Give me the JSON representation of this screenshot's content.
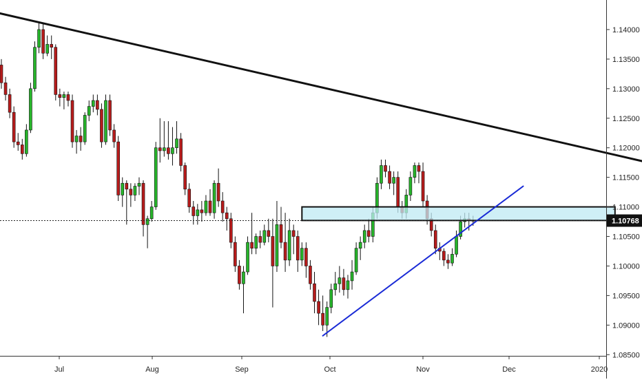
{
  "chart_data": {
    "type": "candlestick",
    "title": "",
    "xlabel": "",
    "ylabel": "",
    "ylim": [
      1.0848,
      1.145
    ],
    "y_ticks": [
      "1.14000",
      "1.13500",
      "1.13000",
      "1.12500",
      "1.12000",
      "1.11500",
      "1.11000",
      "1.10500",
      "1.10000",
      "1.09500",
      "1.09000",
      "1.08500"
    ],
    "x_ticks": [
      "Jul",
      "Aug",
      "Sep",
      "Oct",
      "Nov",
      "Dec",
      "2020"
    ],
    "current_price": "1.10768",
    "colors": {
      "up": "#27b52b",
      "down": "#b71c1c",
      "trendline": "#111111",
      "support_line": "#1a2bd6",
      "zone_fill": "#bfe9f3",
      "price_label_bg": "#111111",
      "price_label_text": "#ffffff"
    },
    "candles": [
      [
        1.134,
        1.135,
        1.13,
        1.131
      ],
      [
        1.131,
        1.132,
        1.128,
        1.129
      ],
      [
        1.129,
        1.13,
        1.125,
        1.126
      ],
      [
        1.126,
        1.127,
        1.12,
        1.121
      ],
      [
        1.121,
        1.1225,
        1.1195,
        1.1205
      ],
      [
        1.1205,
        1.1215,
        1.118,
        1.119
      ],
      [
        1.119,
        1.124,
        1.1185,
        1.123
      ],
      [
        1.123,
        1.131,
        1.1225,
        1.13
      ],
      [
        1.13,
        1.138,
        1.1295,
        1.137
      ],
      [
        1.137,
        1.1412,
        1.136,
        1.14
      ],
      [
        1.14,
        1.141,
        1.135,
        1.136
      ],
      [
        1.136,
        1.139,
        1.1355,
        1.1375
      ],
      [
        1.1375,
        1.139,
        1.135,
        1.137
      ],
      [
        1.137,
        1.1375,
        1.128,
        1.129
      ],
      [
        1.129,
        1.13,
        1.127,
        1.1285
      ],
      [
        1.1285,
        1.1295,
        1.1265,
        1.129
      ],
      [
        1.129,
        1.1295,
        1.127,
        1.128
      ],
      [
        1.128,
        1.129,
        1.12,
        1.121
      ],
      [
        1.121,
        1.123,
        1.119,
        1.122
      ],
      [
        1.122,
        1.1235,
        1.1195,
        1.121
      ],
      [
        1.121,
        1.126,
        1.1205,
        1.1255
      ],
      [
        1.1255,
        1.128,
        1.1245,
        1.127
      ],
      [
        1.127,
        1.129,
        1.126,
        1.128
      ],
      [
        1.128,
        1.129,
        1.1255,
        1.1265
      ],
      [
        1.1265,
        1.1275,
        1.12,
        1.121
      ],
      [
        1.121,
        1.129,
        1.1205,
        1.128
      ],
      [
        1.128,
        1.129,
        1.122,
        1.123
      ],
      [
        1.123,
        1.124,
        1.12,
        1.121
      ],
      [
        1.121,
        1.122,
        1.111,
        1.112
      ],
      [
        1.112,
        1.115,
        1.11,
        1.114
      ],
      [
        1.114,
        1.1145,
        1.107,
        1.113
      ],
      [
        1.113,
        1.114,
        1.11,
        1.112
      ],
      [
        1.112,
        1.114,
        1.111,
        1.1135
      ],
      [
        1.1135,
        1.115,
        1.112,
        1.114
      ],
      [
        1.114,
        1.1145,
        1.105,
        1.107
      ],
      [
        1.107,
        1.1085,
        1.103,
        1.108
      ],
      [
        1.108,
        1.111,
        1.1075,
        1.11
      ],
      [
        1.11,
        1.121,
        1.1095,
        1.12
      ],
      [
        1.12,
        1.125,
        1.1175,
        1.1195
      ],
      [
        1.1195,
        1.1245,
        1.1185,
        1.12
      ],
      [
        1.12,
        1.1245,
        1.118,
        1.119
      ],
      [
        1.119,
        1.1235,
        1.117,
        1.12
      ],
      [
        1.12,
        1.1245,
        1.119,
        1.1215
      ],
      [
        1.1215,
        1.1225,
        1.116,
        1.117
      ],
      [
        1.117,
        1.1175,
        1.112,
        1.113
      ],
      [
        1.113,
        1.114,
        1.109,
        1.11
      ],
      [
        1.11,
        1.111,
        1.107,
        1.1085
      ],
      [
        1.1085,
        1.1105,
        1.107,
        1.1095
      ],
      [
        1.1095,
        1.111,
        1.1075,
        1.109
      ],
      [
        1.109,
        1.112,
        1.1085,
        1.111
      ],
      [
        1.111,
        1.113,
        1.1085,
        1.109
      ],
      [
        1.109,
        1.1145,
        1.108,
        1.114
      ],
      [
        1.114,
        1.1165,
        1.11,
        1.111
      ],
      [
        1.111,
        1.1125,
        1.1075,
        1.109
      ],
      [
        1.109,
        1.11,
        1.106,
        1.108
      ],
      [
        1.108,
        1.109,
        1.103,
        1.104
      ],
      [
        1.104,
        1.105,
        1.099,
        1.1
      ],
      [
        1.1,
        1.101,
        1.096,
        1.097
      ],
      [
        1.097,
        1.1,
        1.092,
        1.099
      ],
      [
        1.099,
        1.105,
        1.0985,
        1.104
      ],
      [
        1.104,
        1.109,
        1.102,
        1.103
      ],
      [
        1.103,
        1.1055,
        1.102,
        1.105
      ],
      [
        1.105,
        1.106,
        1.103,
        1.104
      ],
      [
        1.104,
        1.107,
        1.1035,
        1.106
      ],
      [
        1.106,
        1.108,
        1.104,
        1.105
      ],
      [
        1.105,
        1.108,
        1.093,
        1.1
      ],
      [
        1.1,
        1.111,
        1.099,
        1.107
      ],
      [
        1.107,
        1.11,
        1.103,
        1.104
      ],
      [
        1.104,
        1.109,
        1.099,
        1.101
      ],
      [
        1.101,
        1.108,
        1.1,
        1.106
      ],
      [
        1.106,
        1.107,
        1.102,
        1.105
      ],
      [
        1.105,
        1.106,
        1.099,
        1.101
      ],
      [
        1.101,
        1.104,
        1.1,
        1.103
      ],
      [
        1.103,
        1.104,
        1.098,
        1.1
      ],
      [
        1.1,
        1.101,
        1.096,
        1.097
      ],
      [
        1.097,
        1.099,
        1.092,
        1.094
      ],
      [
        1.094,
        1.096,
        1.09,
        1.092
      ],
      [
        1.092,
        1.095,
        1.089,
        1.09
      ],
      [
        1.09,
        1.094,
        1.088,
        1.093
      ],
      [
        1.093,
        1.097,
        1.092,
        1.096
      ],
      [
        1.096,
        1.099,
        1.095,
        1.097
      ],
      [
        1.097,
        1.1,
        1.0955,
        1.098
      ],
      [
        1.098,
        1.0995,
        1.095,
        1.096
      ],
      [
        1.096,
        1.0985,
        1.0945,
        1.0975
      ],
      [
        1.0975,
        1.101,
        1.096,
        1.099
      ],
      [
        1.099,
        1.104,
        1.0985,
        1.103
      ],
      [
        1.103,
        1.105,
        1.101,
        1.104
      ],
      [
        1.104,
        1.107,
        1.103,
        1.106
      ],
      [
        1.106,
        1.108,
        1.104,
        1.105
      ],
      [
        1.105,
        1.11,
        1.104,
        1.109
      ],
      [
        1.109,
        1.115,
        1.108,
        1.114
      ],
      [
        1.114,
        1.118,
        1.113,
        1.117
      ],
      [
        1.117,
        1.118,
        1.115,
        1.116
      ],
      [
        1.116,
        1.117,
        1.113,
        1.114
      ],
      [
        1.114,
        1.116,
        1.112,
        1.115
      ],
      [
        1.115,
        1.116,
        1.109,
        1.11
      ],
      [
        1.11,
        1.111,
        1.108,
        1.109
      ],
      [
        1.109,
        1.113,
        1.108,
        1.112
      ],
      [
        1.112,
        1.116,
        1.111,
        1.115
      ],
      [
        1.115,
        1.1175,
        1.114,
        1.117
      ],
      [
        1.117,
        1.1175,
        1.114,
        1.116
      ],
      [
        1.116,
        1.1175,
        1.11,
        1.111
      ],
      [
        1.111,
        1.112,
        1.107,
        1.108
      ],
      [
        1.108,
        1.109,
        1.105,
        1.106
      ],
      [
        1.106,
        1.107,
        1.102,
        1.103
      ],
      [
        1.103,
        1.104,
        1.101,
        1.1025
      ],
      [
        1.1025,
        1.103,
        1.1,
        1.101
      ],
      [
        1.101,
        1.102,
        1.0995,
        1.1005
      ],
      [
        1.1005,
        1.103,
        1.1,
        1.102
      ],
      [
        1.102,
        1.106,
        1.1015,
        1.105
      ],
      [
        1.105,
        1.1085,
        1.1045,
        1.1075
      ],
      [
        1.1075,
        1.109,
        1.1065,
        1.108
      ],
      [
        1.108,
        1.109,
        1.106,
        1.1077
      ],
      [
        1.1077,
        1.1085,
        1.1068,
        1.1076
      ]
    ],
    "trendlines": [
      {
        "name": "descending-resistance",
        "from": {
          "bar": -5,
          "price": 1.1435
        },
        "to": {
          "bar": 155,
          "price": 1.1175
        }
      },
      {
        "name": "rising-support",
        "from": {
          "bar": 77,
          "price": 1.0882
        },
        "to": {
          "bar": 125,
          "price": 1.1135
        }
      }
    ],
    "zone": {
      "from_bar": 72,
      "to_bar": 147,
      "top": 1.11,
      "bottom": 1.1077
    }
  }
}
